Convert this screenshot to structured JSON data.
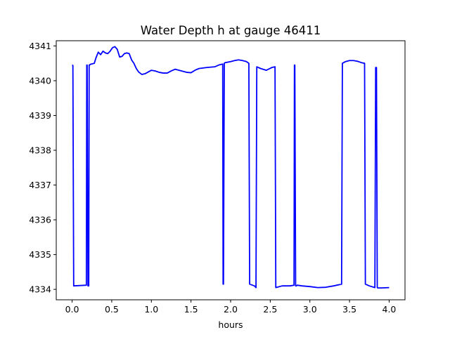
{
  "chart_data": {
    "type": "line",
    "title": "Water Depth h at gauge 46411",
    "xlabel": "hours",
    "ylabel": "",
    "xlim": [
      -0.2,
      4.2
    ],
    "ylim": [
      4333.7,
      4341.15
    ],
    "xticks": [
      0.0,
      0.5,
      1.0,
      1.5,
      2.0,
      2.5,
      3.0,
      3.5,
      4.0
    ],
    "xtick_labels": [
      "0.0",
      "0.5",
      "1.0",
      "1.5",
      "2.0",
      "2.5",
      "3.0",
      "3.5",
      "4.0"
    ],
    "yticks": [
      4334,
      4335,
      4336,
      4337,
      4338,
      4339,
      4340,
      4341
    ],
    "ytick_labels": [
      "4334",
      "4335",
      "4336",
      "4337",
      "4338",
      "4339",
      "4340",
      "4341"
    ],
    "grid": false,
    "line_color": "#0000ff",
    "series": [
      {
        "x": [
          0.0,
          0.01,
          0.02,
          0.18,
          0.185,
          0.19,
          0.2,
          0.21,
          0.215,
          0.22,
          0.23,
          0.28,
          0.3,
          0.33,
          0.36,
          0.39,
          0.42,
          0.45,
          0.48,
          0.51,
          0.54,
          0.57,
          0.6,
          0.63,
          0.66,
          0.69,
          0.72,
          0.75,
          0.78,
          0.81,
          0.84,
          0.88,
          0.92,
          0.96,
          1.0,
          1.05,
          1.1,
          1.15,
          1.2,
          1.25,
          1.3,
          1.35,
          1.4,
          1.45,
          1.5,
          1.55,
          1.6,
          1.7,
          1.8,
          1.85,
          1.9,
          1.905,
          1.91,
          1.92,
          1.93,
          2.0,
          2.05,
          2.1,
          2.15,
          2.2,
          2.23,
          2.24,
          2.3,
          2.32,
          2.33,
          2.38,
          2.45,
          2.52,
          2.56,
          2.57,
          2.65,
          2.75,
          2.8,
          2.805,
          2.81,
          2.82,
          2.83,
          2.84,
          2.9,
          3.0,
          3.1,
          3.2,
          3.3,
          3.4,
          3.41,
          3.45,
          3.5,
          3.55,
          3.6,
          3.65,
          3.69,
          3.7,
          3.75,
          3.82,
          3.83,
          3.84,
          3.85,
          3.86,
          3.9,
          4.0
        ],
        "y": [
          4340.45,
          4340.44,
          4334.1,
          4334.12,
          4340.45,
          4340.45,
          4334.1,
          4334.1,
          4340.45,
          4340.45,
          4340.47,
          4340.5,
          4340.65,
          4340.82,
          4340.75,
          4340.85,
          4340.8,
          4340.78,
          4340.85,
          4340.95,
          4340.98,
          4340.9,
          4340.68,
          4340.7,
          4340.78,
          4340.8,
          4340.78,
          4340.6,
          4340.5,
          4340.35,
          4340.25,
          4340.18,
          4340.2,
          4340.25,
          4340.3,
          4340.28,
          4340.24,
          4340.22,
          4340.22,
          4340.28,
          4340.33,
          4340.3,
          4340.27,
          4340.24,
          4340.23,
          4340.3,
          4340.35,
          4340.38,
          4340.4,
          4340.45,
          4340.48,
          4334.15,
          4334.15,
          4340.5,
          4340.52,
          4340.55,
          4340.58,
          4340.6,
          4340.58,
          4340.55,
          4340.5,
          4334.15,
          4334.1,
          4334.05,
          4340.4,
          4340.35,
          4340.3,
          4340.38,
          4340.4,
          4334.05,
          4334.1,
          4334.1,
          4334.12,
          4340.45,
          4340.45,
          4334.1,
          4334.1,
          4334.12,
          4334.1,
          4334.08,
          4334.05,
          4334.06,
          4334.1,
          4334.15,
          4340.5,
          4340.55,
          4340.58,
          4340.58,
          4340.56,
          4340.52,
          4340.5,
          4334.15,
          4334.1,
          4334.05,
          4340.38,
          4340.38,
          4334.05,
          4334.04,
          4334.04,
          4334.05
        ]
      }
    ]
  }
}
